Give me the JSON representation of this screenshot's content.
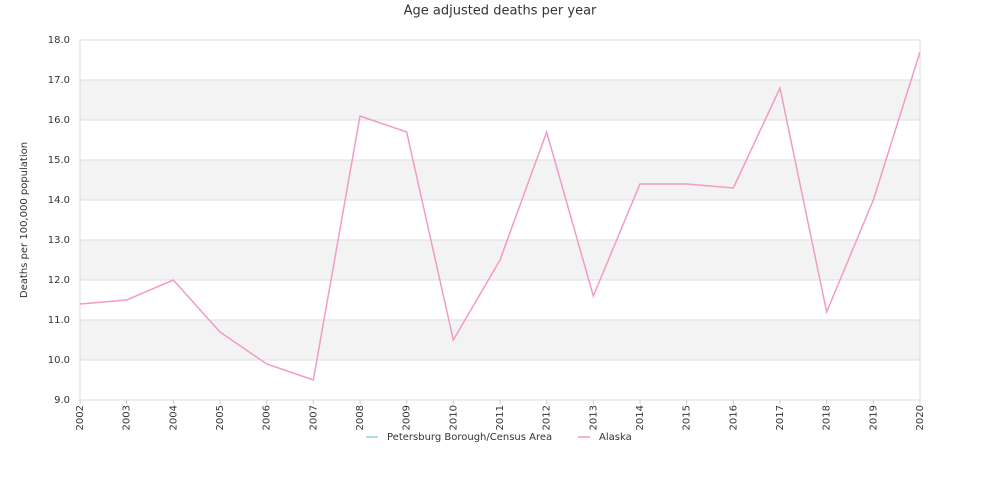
{
  "chart_data": {
    "type": "line",
    "title": "Age adjusted deaths per year",
    "y_label": "Deaths per 100,000 population",
    "categories": [
      "2002",
      "2003",
      "2004",
      "2005",
      "2006",
      "2007",
      "2008",
      "2009",
      "2010",
      "2011",
      "2012",
      "2013",
      "2014",
      "2015",
      "2016",
      "2017",
      "2018",
      "2019",
      "2020"
    ],
    "series": [
      {
        "name": "Petersburg Borough/Census Area",
        "color": "#8fd3e0",
        "values": [
          null,
          null,
          null,
          null,
          null,
          null,
          null,
          null,
          null,
          null,
          null,
          null,
          null,
          null,
          null,
          null,
          null,
          null,
          null
        ]
      },
      {
        "name": "Alaska",
        "color": "#f29ac8",
        "values": [
          11.4,
          11.5,
          12.0,
          10.7,
          9.9,
          9.5,
          16.1,
          15.7,
          10.5,
          12.5,
          15.7,
          11.6,
          14.4,
          14.4,
          14.3,
          16.8,
          11.2,
          14.0,
          17.7
        ]
      }
    ],
    "ylim": [
      9,
      18
    ],
    "yticks": [
      {
        "value": 9,
        "label": "9.0"
      },
      {
        "value": 10,
        "label": "10.0"
      },
      {
        "value": 11,
        "label": "11.0"
      },
      {
        "value": 12,
        "label": "12.0"
      },
      {
        "value": 13,
        "label": "13.0"
      },
      {
        "value": 14,
        "label": "14.0"
      },
      {
        "value": 15,
        "label": "15.0"
      },
      {
        "value": 16,
        "label": "16.0"
      },
      {
        "value": 17,
        "label": "17.0"
      },
      {
        "value": 18,
        "label": "18.0"
      }
    ],
    "grid": true
  }
}
